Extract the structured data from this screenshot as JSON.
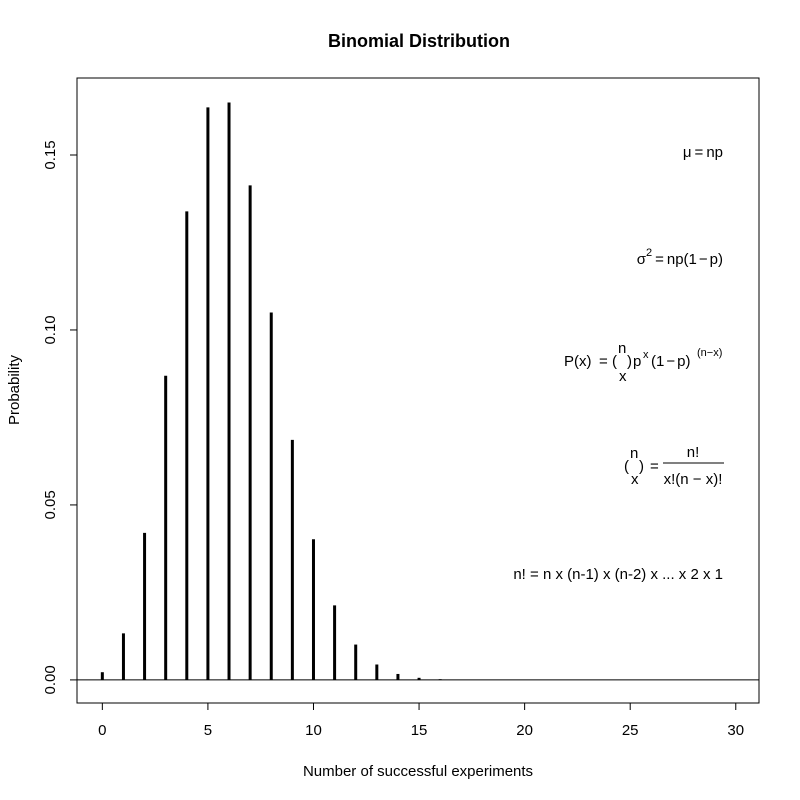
{
  "chart_data": {
    "type": "bar",
    "title": "Binomial Distribution",
    "xlabel": "Number of successful experiments",
    "ylabel": "Probability",
    "xlim": [
      -1.2,
      31.1
    ],
    "ylim": [
      -0.0066,
      0.172
    ],
    "x_ticks": [
      0,
      5,
      10,
      15,
      20,
      25,
      30
    ],
    "x_tick_labels": [
      "0",
      "5",
      "10",
      "15",
      "20",
      "25",
      "30"
    ],
    "y_ticks": [
      0.0,
      0.05,
      0.1,
      0.15
    ],
    "y_tick_labels": [
      "0.00",
      "0.05",
      "0.10",
      "0.15"
    ],
    "grid": false,
    "legend": "none",
    "baseline": 0,
    "x": [
      0,
      1,
      2,
      3,
      4,
      5,
      6,
      7,
      8,
      9,
      10,
      11,
      12,
      13,
      14,
      15,
      16,
      17,
      18,
      19,
      20,
      21,
      22,
      23,
      24,
      25,
      26,
      27,
      28,
      29,
      30
    ],
    "values": [
      0.0022,
      0.0133,
      0.042,
      0.0869,
      0.1339,
      0.1636,
      0.165,
      0.1413,
      0.105,
      0.0686,
      0.0402,
      0.0213,
      0.0101,
      0.0044,
      0.0017,
      0.0006,
      0.0002,
      0.0001,
      0.0,
      0.0,
      0.0,
      0.0,
      0.0,
      0.0,
      0.0,
      0.0,
      0.0,
      0.0,
      0.0,
      0.0,
      0.0
    ],
    "bar_color": "#000000"
  },
  "annotations": {
    "mean": {
      "mu": "μ",
      "eq": "=",
      "rhs": "np"
    },
    "variance": {
      "sigma": "σ",
      "sup": "2",
      "eq": "=",
      "rhs": "np(1",
      "minus": "−",
      "rhs_end": "p)"
    },
    "pmf": {
      "lhs": "P(x)",
      "eq": "=",
      "paren_open": "(",
      "paren_close": ")",
      "binom_top": "n",
      "binom_bottom": "x",
      "p": "p",
      "p_sup": "x",
      "rhs": "(1",
      "minus": "−",
      "rhs_end": "p)",
      "rhs_sup": "(n−x)"
    },
    "binomial_coef": {
      "paren_open": "(",
      "paren_close": ")",
      "binom_top": "n",
      "binom_bottom": "x",
      "eq": "=",
      "numerator": "n!",
      "denominator": "x!(n − x)!"
    },
    "factorial": {
      "text": "n! = n x (n-1) x (n-2) x ... x 2 x 1"
    }
  }
}
